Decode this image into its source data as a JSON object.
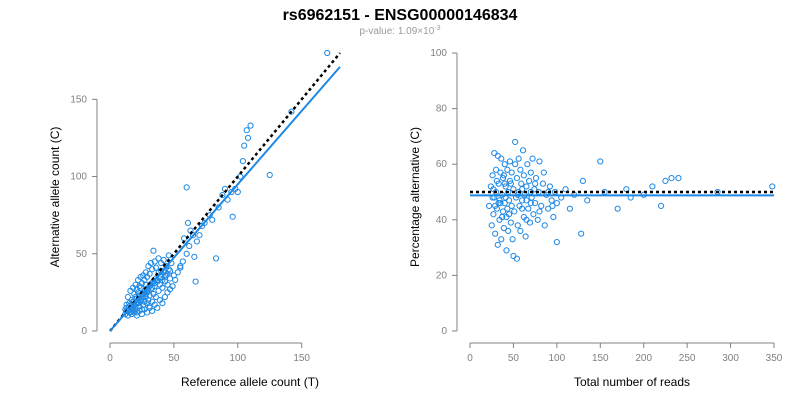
{
  "title": "rs6962151 - ENSG00000146834",
  "subtitle_prefix": "p-value: 1.09×10",
  "subtitle_exponent": "-3",
  "colors": {
    "points": "#1e88e5",
    "fit": "#1e88e5",
    "reference": "#000000",
    "axis": "#808080"
  },
  "chart_data": [
    {
      "type": "scatter",
      "xlabel": "Reference allele count (T)",
      "ylabel": "Alternative allele count (C)",
      "xlim": [
        0,
        180
      ],
      "ylim": [
        0,
        180
      ],
      "xticks": [
        0,
        50,
        100,
        150
      ],
      "yticks": [
        0,
        50,
        100,
        150
      ],
      "grid": false,
      "fit_line": {
        "style": "solid",
        "points": [
          [
            0,
            0
          ],
          [
            180,
            171
          ]
        ]
      },
      "reference_line": {
        "style": "dotted",
        "points": [
          [
            0,
            0
          ],
          [
            180,
            180
          ]
        ]
      },
      "points": [
        [
          12,
          11
        ],
        [
          13,
          13
        ],
        [
          14,
          10
        ],
        [
          15,
          14
        ],
        [
          16,
          12
        ],
        [
          17,
          15
        ],
        [
          18,
          13
        ],
        [
          18,
          19
        ],
        [
          19,
          17
        ],
        [
          20,
          14
        ],
        [
          20,
          22
        ],
        [
          21,
          18
        ],
        [
          21,
          12
        ],
        [
          22,
          20
        ],
        [
          22,
          25
        ],
        [
          23,
          16
        ],
        [
          23,
          23
        ],
        [
          24,
          19
        ],
        [
          24,
          28
        ],
        [
          25,
          14
        ],
        [
          25,
          21
        ],
        [
          26,
          24
        ],
        [
          26,
          17
        ],
        [
          27,
          26
        ],
        [
          27,
          19
        ],
        [
          28,
          22
        ],
        [
          28,
          30
        ],
        [
          29,
          18
        ],
        [
          29,
          25
        ],
        [
          30,
          20
        ],
        [
          30,
          28
        ],
        [
          31,
          23
        ],
        [
          31,
          15
        ],
        [
          32,
          27
        ],
        [
          33,
          19
        ],
        [
          33,
          31
        ],
        [
          34,
          24
        ],
        [
          35,
          29
        ],
        [
          36,
          22
        ],
        [
          37,
          33
        ],
        [
          38,
          26
        ],
        [
          39,
          30
        ],
        [
          40,
          35
        ],
        [
          41,
          28
        ],
        [
          42,
          38
        ],
        [
          43,
          32
        ],
        [
          44,
          36
        ],
        [
          45,
          30
        ],
        [
          46,
          40
        ],
        [
          47,
          34
        ],
        [
          14,
          22
        ],
        [
          15,
          18
        ],
        [
          16,
          26
        ],
        [
          17,
          20
        ],
        [
          18,
          28
        ],
        [
          19,
          24
        ],
        [
          20,
          30
        ],
        [
          21,
          27
        ],
        [
          22,
          33
        ],
        [
          23,
          29
        ],
        [
          24,
          35
        ],
        [
          25,
          31
        ],
        [
          26,
          36
        ],
        [
          27,
          33
        ],
        [
          28,
          38
        ],
        [
          29,
          35
        ],
        [
          30,
          42
        ],
        [
          31,
          37
        ],
        [
          32,
          44
        ],
        [
          33,
          40
        ],
        [
          34,
          52
        ],
        [
          35,
          45
        ],
        [
          36,
          41
        ],
        [
          38,
          47
        ],
        [
          40,
          44
        ],
        [
          13,
          17
        ],
        [
          15,
          12
        ],
        [
          17,
          11
        ],
        [
          19,
          12
        ],
        [
          21,
          10
        ],
        [
          23,
          13
        ],
        [
          25,
          11
        ],
        [
          27,
          14
        ],
        [
          29,
          12
        ],
        [
          31,
          16
        ],
        [
          33,
          13
        ],
        [
          35,
          17
        ],
        [
          37,
          15
        ],
        [
          39,
          20
        ],
        [
          41,
          18
        ],
        [
          43,
          22
        ],
        [
          45,
          25
        ],
        [
          47,
          27
        ],
        [
          49,
          29
        ],
        [
          51,
          33
        ],
        [
          53,
          38
        ],
        [
          55,
          42
        ],
        [
          57,
          45
        ],
        [
          60,
          50
        ],
        [
          62,
          55
        ],
        [
          58,
          60
        ],
        [
          61,
          70
        ],
        [
          63,
          65
        ],
        [
          65,
          62
        ],
        [
          67,
          32
        ],
        [
          66,
          48
        ],
        [
          68,
          58
        ],
        [
          70,
          62
        ],
        [
          72,
          68
        ],
        [
          74,
          70
        ],
        [
          78,
          75
        ],
        [
          80,
          72
        ],
        [
          83,
          47
        ],
        [
          85,
          80
        ],
        [
          88,
          88
        ],
        [
          90,
          92
        ],
        [
          92,
          85
        ],
        [
          95,
          90
        ],
        [
          96,
          74
        ],
        [
          98,
          92
        ],
        [
          100,
          90
        ],
        [
          102,
          100
        ],
        [
          104,
          110
        ],
        [
          105,
          120
        ],
        [
          107,
          130
        ],
        [
          108,
          125
        ],
        [
          110,
          133
        ],
        [
          125,
          101
        ],
        [
          142,
          142
        ],
        [
          170,
          180
        ],
        [
          60,
          93
        ],
        [
          55,
          41
        ],
        [
          50,
          36
        ],
        [
          48,
          44
        ],
        [
          46,
          49
        ],
        [
          44,
          42
        ],
        [
          42,
          46
        ],
        [
          40,
          39
        ],
        [
          38,
          38
        ],
        [
          36,
          34
        ],
        [
          34,
          32
        ],
        [
          32,
          30
        ],
        [
          30,
          26
        ],
        [
          28,
          24
        ],
        [
          26,
          22
        ],
        [
          24,
          20
        ],
        [
          22,
          18
        ],
        [
          20,
          16
        ],
        [
          18,
          15
        ],
        [
          16,
          14
        ],
        [
          14,
          13
        ],
        [
          12,
          14
        ],
        [
          13,
          15
        ],
        [
          15,
          16
        ],
        [
          17,
          17
        ],
        [
          19,
          19
        ],
        [
          21,
          21
        ],
        [
          23,
          22
        ],
        [
          25,
          24
        ],
        [
          27,
          25
        ],
        [
          29,
          27
        ],
        [
          31,
          29
        ],
        [
          33,
          28
        ],
        [
          35,
          31
        ],
        [
          37,
          32
        ],
        [
          39,
          34
        ],
        [
          41,
          33
        ],
        [
          43,
          36
        ],
        [
          45,
          37
        ],
        [
          47,
          39
        ]
      ]
    },
    {
      "type": "scatter",
      "xlabel": "Total number of reads",
      "ylabel": "Percentage alternative (C)",
      "xlim": [
        0,
        350
      ],
      "ylim": [
        0,
        100
      ],
      "xticks": [
        0,
        50,
        100,
        150,
        200,
        250,
        300,
        350
      ],
      "yticks": [
        0,
        20,
        40,
        60,
        80,
        100
      ],
      "grid": false,
      "fit_line": {
        "style": "solid",
        "y": 48.8
      },
      "reference_line": {
        "style": "dotted",
        "y": 50
      },
      "points": [
        [
          22,
          45
        ],
        [
          24,
          52
        ],
        [
          25,
          38
        ],
        [
          26,
          56
        ],
        [
          27,
          42
        ],
        [
          28,
          64
        ],
        [
          28,
          48
        ],
        [
          29,
          35
        ],
        [
          30,
          50
        ],
        [
          30,
          58
        ],
        [
          31,
          44
        ],
        [
          32,
          31
        ],
        [
          32,
          63
        ],
        [
          33,
          53
        ],
        [
          34,
          40
        ],
        [
          34,
          47
        ],
        [
          35,
          57
        ],
        [
          36,
          33
        ],
        [
          36,
          62
        ],
        [
          37,
          49
        ],
        [
          38,
          43
        ],
        [
          38,
          55
        ],
        [
          39,
          37
        ],
        [
          40,
          60
        ],
        [
          40,
          46
        ],
        [
          41,
          52
        ],
        [
          42,
          29
        ],
        [
          42,
          41
        ],
        [
          43,
          58
        ],
        [
          44,
          50
        ],
        [
          44,
          36
        ],
        [
          45,
          47
        ],
        [
          46,
          61
        ],
        [
          46,
          54
        ],
        [
          47,
          39
        ],
        [
          48,
          45
        ],
        [
          48,
          57
        ],
        [
          49,
          33
        ],
        [
          50,
          51
        ],
        [
          50,
          27
        ],
        [
          51,
          43
        ],
        [
          52,
          68
        ],
        [
          52,
          60
        ],
        [
          53,
          48
        ],
        [
          54,
          26
        ],
        [
          54,
          55
        ],
        [
          55,
          38
        ],
        [
          56,
          62
        ],
        [
          56,
          50
        ],
        [
          57,
          45
        ],
        [
          58,
          58
        ],
        [
          58,
          36
        ],
        [
          59,
          53
        ],
        [
          60,
          47
        ],
        [
          61,
          65
        ],
        [
          62,
          41
        ],
        [
          62,
          56
        ],
        [
          63,
          49
        ],
        [
          64,
          34
        ],
        [
          65,
          52
        ],
        [
          66,
          60
        ],
        [
          67,
          44
        ],
        [
          68,
          54
        ],
        [
          69,
          39
        ],
        [
          70,
          57
        ],
        [
          71,
          48
        ],
        [
          72,
          62
        ],
        [
          73,
          42
        ],
        [
          74,
          51
        ],
        [
          75,
          46
        ],
        [
          76,
          55
        ],
        [
          78,
          40
        ],
        [
          79,
          50
        ],
        [
          80,
          61
        ],
        [
          82,
          45
        ],
        [
          84,
          53
        ],
        [
          86,
          38
        ],
        [
          88,
          49
        ],
        [
          90,
          44
        ],
        [
          92,
          52
        ],
        [
          94,
          47
        ],
        [
          96,
          41
        ],
        [
          98,
          50
        ],
        [
          100,
          32
        ],
        [
          100,
          46
        ],
        [
          105,
          48
        ],
        [
          110,
          51
        ],
        [
          115,
          44
        ],
        [
          120,
          49
        ],
        [
          128,
          35
        ],
        [
          130,
          54
        ],
        [
          135,
          47
        ],
        [
          150,
          61
        ],
        [
          155,
          50
        ],
        [
          170,
          44
        ],
        [
          180,
          51
        ],
        [
          185,
          48
        ],
        [
          200,
          49
        ],
        [
          210,
          52
        ],
        [
          220,
          45
        ],
        [
          225,
          54
        ],
        [
          232,
          55
        ],
        [
          240,
          55
        ],
        [
          285,
          50
        ],
        [
          348,
          52
        ],
        [
          60,
          44
        ],
        [
          65,
          40
        ],
        [
          70,
          46
        ],
        [
          75,
          53
        ],
        [
          80,
          43
        ],
        [
          35,
          46
        ],
        [
          40,
          53
        ],
        [
          45,
          42
        ],
        [
          55,
          49
        ],
        [
          60,
          51
        ],
        [
          65,
          47
        ],
        [
          70,
          50
        ],
        [
          85,
          57
        ],
        [
          90,
          50
        ],
        [
          95,
          45
        ],
        [
          26,
          48
        ],
        [
          27,
          51
        ],
        [
          29,
          45
        ],
        [
          31,
          54
        ],
        [
          33,
          46
        ],
        [
          37,
          41
        ],
        [
          39,
          56
        ],
        [
          41,
          48
        ],
        [
          43,
          44
        ],
        [
          47,
          53
        ]
      ]
    }
  ]
}
